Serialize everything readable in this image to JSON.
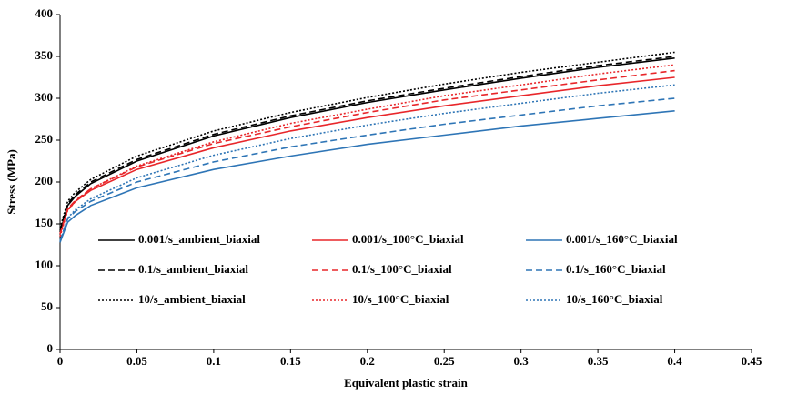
{
  "chart_data": {
    "type": "line",
    "x_label": "Equivalent plastic strain",
    "y_label": "Stress (MPa)",
    "x": [
      0,
      0.005,
      0.01,
      0.02,
      0.05,
      0.1,
      0.15,
      0.2,
      0.25,
      0.3,
      0.35,
      0.4
    ],
    "xlim": [
      0,
      0.45
    ],
    "xticks": [
      0,
      0.05,
      0.1,
      0.15,
      0.2,
      0.25,
      0.3,
      0.35,
      0.4,
      0.45
    ],
    "ylim": [
      0,
      400
    ],
    "yticks": [
      0,
      50,
      100,
      150,
      200,
      250,
      300,
      350,
      400
    ],
    "grid": false,
    "series": [
      {
        "name": "0.001/s_ambient_biaxial",
        "color": "#000000",
        "linestyle": "solid",
        "values": [
          140,
          172,
          183,
          198,
          225,
          255,
          277,
          295,
          310,
          324,
          337,
          348
        ]
      },
      {
        "name": "0.001/s_100°C_biaxial",
        "color": "#e8262a",
        "linestyle": "solid",
        "values": [
          138,
          167,
          177,
          190,
          215,
          241,
          261,
          277,
          291,
          303,
          315,
          325
        ]
      },
      {
        "name": "0.001/s_160°C_biaxial",
        "color": "#2e75b6",
        "linestyle": "solid",
        "values": [
          128,
          152,
          160,
          172,
          193,
          215,
          231,
          245,
          256,
          267,
          276,
          285
        ]
      },
      {
        "name": "0.1/s_ambient_biaxial",
        "color": "#000000",
        "linestyle": "dashed",
        "values": [
          142,
          174,
          185,
          200,
          227,
          257,
          279,
          297,
          312,
          326,
          339,
          350
        ]
      },
      {
        "name": "0.1/s_100°C_biaxial",
        "color": "#e8262a",
        "linestyle": "dashed",
        "values": [
          138,
          168,
          178,
          192,
          218,
          246,
          266,
          283,
          298,
          310,
          322,
          333
        ]
      },
      {
        "name": "0.1/s_160°C_biaxial",
        "color": "#2e75b6",
        "linestyle": "dashed",
        "values": [
          130,
          156,
          165,
          177,
          200,
          224,
          242,
          256,
          269,
          280,
          291,
          300
        ]
      },
      {
        "name": "10/s_ambient_biaxial",
        "color": "#000000",
        "linestyle": "dotted",
        "values": [
          145,
          177,
          188,
          203,
          231,
          261,
          283,
          301,
          317,
          331,
          343,
          355
        ]
      },
      {
        "name": "10/s_100°C_biaxial",
        "color": "#e8262a",
        "linestyle": "dotted",
        "values": [
          135,
          166,
          177,
          192,
          219,
          248,
          270,
          287,
          303,
          316,
          329,
          340
        ]
      },
      {
        "name": "10/s_160°C_biaxial",
        "color": "#2e75b6",
        "linestyle": "dotted",
        "values": [
          128,
          157,
          167,
          180,
          205,
          232,
          252,
          268,
          282,
          294,
          306,
          316
        ]
      }
    ]
  }
}
